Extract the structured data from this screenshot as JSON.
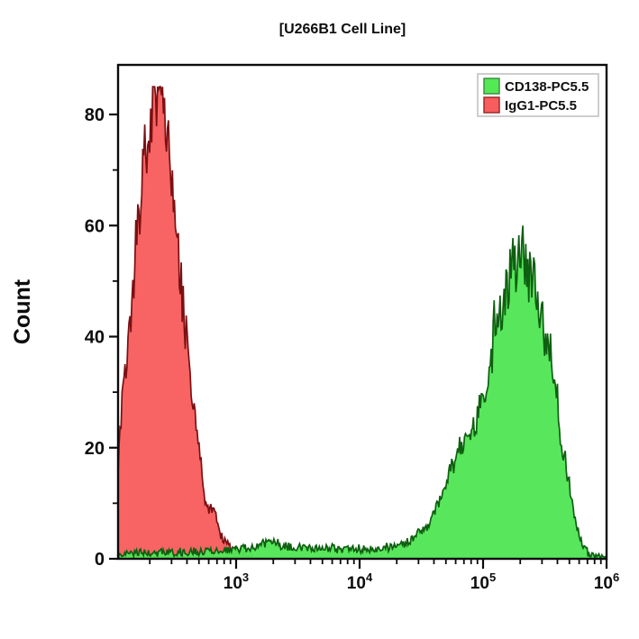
{
  "page": {
    "background": "#ffffff",
    "frame_color": "#0b0b0b"
  },
  "chart_data": {
    "type": "area",
    "subtype": "flow-cytometry-histogram-overlay",
    "title": "[U266B1 Cell Line]",
    "ylabel": "Count",
    "ylim": [
      0,
      89
    ],
    "y_major_ticks": [
      0,
      20,
      40,
      60,
      80
    ],
    "y_minor_ticks": [
      10,
      30,
      50,
      70
    ],
    "x_scale": "log10",
    "x_log_range": [
      2.044,
      6.0
    ],
    "x_major_tick_exponents": [
      3,
      4,
      5,
      6
    ],
    "x_tick_base": "10",
    "grid": false,
    "legend": {
      "position": "top-right",
      "border_color": "#bdbdbd",
      "background": "#ffffff",
      "items": [
        {
          "label": "CD138-PC5.5",
          "color": "#55e855",
          "border": "#3d8f44"
        },
        {
          "label": "IgG1-PC5.5",
          "color": "#f85c5c",
          "border": "#9c2b2b"
        }
      ]
    },
    "noise_seed": 20240717,
    "series": [
      {
        "id": "igg1-pc5-5",
        "name": "IgG1-PC5.5",
        "fill": "#f85f5e",
        "stroke": "#7a1013",
        "peak_x": 250,
        "peak_count": 85,
        "jitter": 0.1,
        "abs_jitter": 0.9,
        "spike": 0.14,
        "max": 85,
        "points_log10x_count": [
          [
            2.044,
            16
          ],
          [
            2.06,
            22
          ],
          [
            2.08,
            28
          ],
          [
            2.11,
            34
          ],
          [
            2.14,
            42
          ],
          [
            2.17,
            50
          ],
          [
            2.2,
            58
          ],
          [
            2.23,
            65
          ],
          [
            2.26,
            72
          ],
          [
            2.29,
            77
          ],
          [
            2.32,
            80
          ],
          [
            2.35,
            83
          ],
          [
            2.37,
            85
          ],
          [
            2.39,
            80
          ],
          [
            2.41,
            83
          ],
          [
            2.43,
            78
          ],
          [
            2.46,
            72
          ],
          [
            2.49,
            65
          ],
          [
            2.52,
            58
          ],
          [
            2.55,
            50
          ],
          [
            2.58,
            43
          ],
          [
            2.61,
            36
          ],
          [
            2.64,
            30
          ],
          [
            2.67,
            24
          ],
          [
            2.7,
            18
          ],
          [
            2.73,
            13
          ],
          [
            2.76,
            10
          ],
          [
            2.79,
            8
          ],
          [
            2.82,
            9
          ],
          [
            2.85,
            6
          ],
          [
            2.88,
            4
          ],
          [
            2.91,
            3
          ],
          [
            2.94,
            2.2
          ],
          [
            2.98,
            1.6
          ],
          [
            3.03,
            1.2
          ],
          [
            3.08,
            0.8
          ],
          [
            3.14,
            0.4
          ],
          [
            3.2,
            0
          ]
        ]
      },
      {
        "id": "cd138-pc5-5",
        "name": "CD138-PC5.5",
        "fill": "#53e657",
        "stroke": "#0e5f10",
        "peak_x": 200000,
        "peak_count": 60,
        "jitter": 0.1,
        "abs_jitter": 0.7,
        "spike": 0.13,
        "max": 60,
        "points_log10x_count": [
          [
            2.05,
            0.8
          ],
          [
            2.2,
            1.0
          ],
          [
            2.4,
            1.1
          ],
          [
            2.6,
            1.2
          ],
          [
            2.8,
            1.4
          ],
          [
            2.95,
            1.6
          ],
          [
            3.05,
            1.8
          ],
          [
            3.15,
            2.2
          ],
          [
            3.25,
            2.8
          ],
          [
            3.3,
            3.4
          ],
          [
            3.36,
            2.4
          ],
          [
            3.45,
            2.0
          ],
          [
            3.55,
            2.3
          ],
          [
            3.65,
            1.8
          ],
          [
            3.75,
            2.0
          ],
          [
            3.85,
            1.6
          ],
          [
            3.95,
            1.8
          ],
          [
            4.05,
            1.7
          ],
          [
            4.15,
            1.9
          ],
          [
            4.25,
            2.1
          ],
          [
            4.33,
            2.6
          ],
          [
            4.4,
            3.2
          ],
          [
            4.47,
            4.5
          ],
          [
            4.55,
            6
          ],
          [
            4.62,
            9
          ],
          [
            4.68,
            12
          ],
          [
            4.75,
            16
          ],
          [
            4.83,
            20
          ],
          [
            4.9,
            23
          ],
          [
            4.96,
            25
          ],
          [
            5.0,
            28
          ],
          [
            5.05,
            33
          ],
          [
            5.1,
            40
          ],
          [
            5.15,
            45
          ],
          [
            5.2,
            49
          ],
          [
            5.25,
            52
          ],
          [
            5.29,
            55
          ],
          [
            5.31,
            60
          ],
          [
            5.34,
            53
          ],
          [
            5.38,
            51
          ],
          [
            5.42,
            49
          ],
          [
            5.45,
            46
          ],
          [
            5.5,
            40
          ],
          [
            5.56,
            33
          ],
          [
            5.6,
            27
          ],
          [
            5.64,
            21
          ],
          [
            5.68,
            15
          ],
          [
            5.71,
            12
          ],
          [
            5.74,
            8
          ],
          [
            5.77,
            5
          ],
          [
            5.81,
            2.5
          ],
          [
            5.85,
            1.2
          ],
          [
            5.9,
            0.8
          ],
          [
            5.95,
            0.5
          ],
          [
            6.0,
            0.3
          ]
        ]
      }
    ]
  }
}
